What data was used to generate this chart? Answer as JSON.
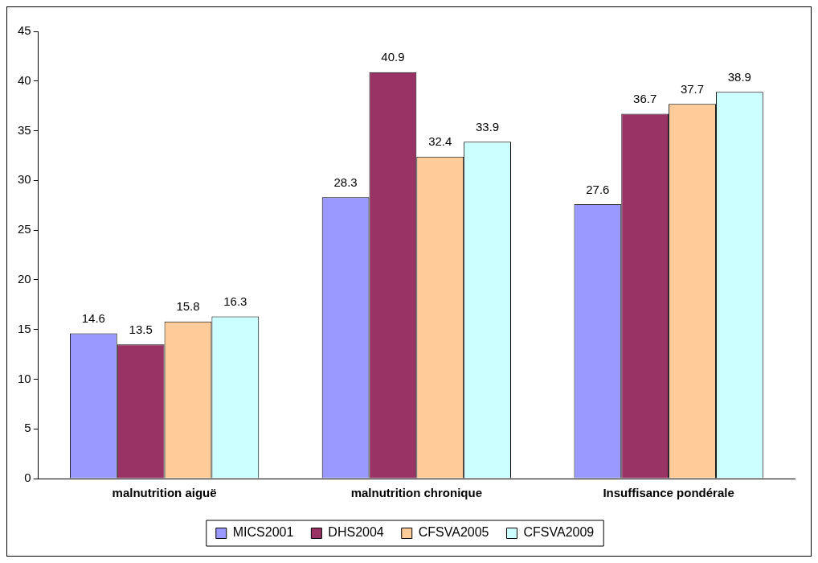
{
  "chart_data": {
    "type": "bar",
    "categories": [
      "malnutrition aiguë",
      "malnutrition chronique",
      "Insuffisance pondérale"
    ],
    "series": [
      {
        "name": "MICS2001",
        "color": "#9999ff",
        "values": [
          14.6,
          28.3,
          27.6
        ]
      },
      {
        "name": "DHS2004",
        "color": "#993366",
        "values": [
          13.5,
          40.9,
          36.7
        ]
      },
      {
        "name": "CFSVA2005",
        "color": "#ffcc99",
        "values": [
          15.8,
          32.4,
          37.7
        ]
      },
      {
        "name": "CFSVA2009",
        "color": "#ccffff",
        "values": [
          16.3,
          33.9,
          38.9
        ]
      }
    ],
    "ylim": [
      0,
      45
    ],
    "yticks": [
      0,
      5,
      10,
      15,
      20,
      25,
      30,
      35,
      40,
      45
    ],
    "grid": false,
    "legend": "bottom",
    "data_labels": true
  }
}
